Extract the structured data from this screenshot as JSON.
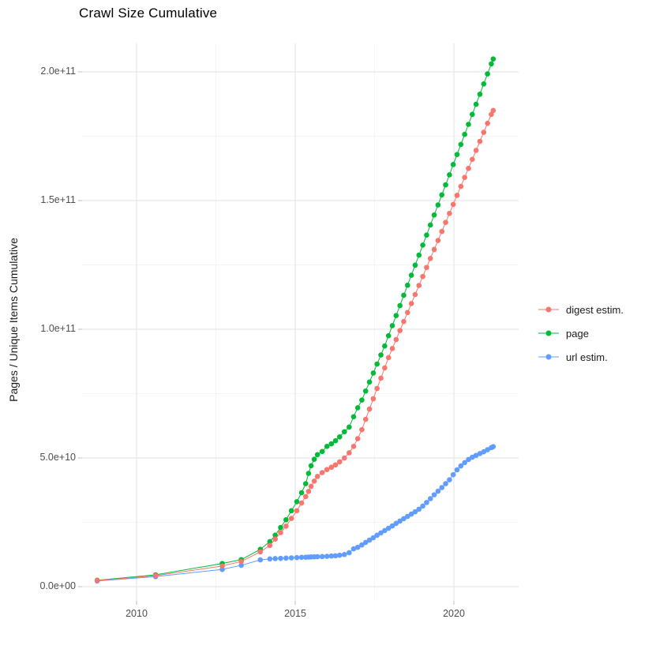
{
  "chart_data": {
    "type": "line",
    "title": "Crawl Size Cumulative",
    "xlabel": "",
    "ylabel": "Pages / Unique Items Cumulative",
    "legend_position": "right",
    "grid": true,
    "background_color": "#FFFFFF",
    "major_grid_color": "#E7E7E7",
    "minor_grid_color": "#F4F4F4",
    "tick_mark_color": "#C9C9C9",
    "x_range_shown": [
      2008.28,
      2022.04
    ],
    "y_range_shown": [
      0,
      211000000000
    ],
    "x_major_ticks": [
      {
        "value": 2010,
        "label": "2010"
      },
      {
        "value": 2015,
        "label": "2015"
      },
      {
        "value": 2020,
        "label": "2020"
      }
    ],
    "x_minor_ticks": [
      2012.5,
      2017.5
    ],
    "y_major_ticks": [
      {
        "value_billion": 0,
        "label": "0.0e+00"
      },
      {
        "value_billion": 50,
        "label": "5.0e+10"
      },
      {
        "value_billion": 100,
        "label": "1.0e+11"
      },
      {
        "value_billion": 150,
        "label": "1.5e+11"
      },
      {
        "value_billion": 200,
        "label": "2.0e+11"
      }
    ],
    "y_minor_ticks_billion": [
      25,
      75,
      125,
      175
    ],
    "values_unit": "billions of items (1e9)",
    "x_unit": "calendar year (decimal)",
    "x": [
      2008.76,
      2010.6,
      2012.7,
      2013.3,
      2013.9,
      2014.2,
      2014.37,
      2014.54,
      2014.71,
      2014.88,
      2015.05,
      2015.2,
      2015.33,
      2015.42,
      2015.5,
      2015.6,
      2015.7,
      2015.85,
      2016.0,
      2016.14,
      2016.27,
      2016.4,
      2016.55,
      2016.7,
      2016.84,
      2016.97,
      2017.1,
      2017.22,
      2017.34,
      2017.46,
      2017.58,
      2017.7,
      2017.82,
      2017.94,
      2018.06,
      2018.18,
      2018.3,
      2018.42,
      2018.54,
      2018.66,
      2018.78,
      2018.9,
      2019.02,
      2019.14,
      2019.26,
      2019.38,
      2019.5,
      2019.62,
      2019.74,
      2019.86,
      2019.98,
      2020.1,
      2020.22,
      2020.34,
      2020.46,
      2020.58,
      2020.7,
      2020.82,
      2020.94,
      2021.06,
      2021.18,
      2021.24
    ],
    "series": [
      {
        "name": "digest estim.",
        "color": "#F8766D",
        "values_billion": [
          2.4,
          4.3,
          8.0,
          9.8,
          13.5,
          16,
          18.5,
          21,
          23.5,
          26.5,
          29.5,
          32.5,
          35,
          37,
          39,
          41,
          42.8,
          44.3,
          45.5,
          46.4,
          47.3,
          48.5,
          50,
          52,
          54.5,
          57.5,
          61,
          65,
          69,
          73,
          77,
          81,
          85,
          89,
          92.5,
          96,
          99.5,
          103,
          106.5,
          110,
          113.5,
          117,
          120.5,
          124,
          127.5,
          131,
          134.5,
          138,
          141.5,
          145,
          148.5,
          152,
          155.5,
          159,
          162.5,
          166,
          169.5,
          173,
          176.5,
          180,
          183.5,
          185
        ]
      },
      {
        "name": "page",
        "color": "#00BA38",
        "values_billion": [
          2.5,
          4.6,
          9.0,
          10.5,
          14.5,
          17.5,
          20,
          23,
          26,
          29.5,
          33,
          36.5,
          40,
          44,
          47,
          49.5,
          51.3,
          52.5,
          54.5,
          55.5,
          56.7,
          58.2,
          60.2,
          62,
          66,
          69.5,
          72.5,
          76,
          79.5,
          83,
          86.5,
          90,
          93.5,
          97.5,
          101.4,
          105.3,
          109.2,
          113.2,
          117.1,
          121,
          124.9,
          128.8,
          132.7,
          136.6,
          140.5,
          144.4,
          148.3,
          152.2,
          156.1,
          160,
          164,
          167.9,
          171.8,
          175.7,
          179.6,
          183.5,
          187.4,
          191.3,
          195.3,
          199.2,
          203.1,
          205
        ]
      },
      {
        "name": "url estim.",
        "color": "#619CFF",
        "values_billion": [
          2.2,
          3.9,
          6.7,
          8.3,
          10.4,
          10.8,
          10.9,
          11.0,
          11.1,
          11.2,
          11.3,
          11.4,
          11.45,
          11.5,
          11.55,
          11.6,
          11.65,
          11.7,
          11.8,
          11.9,
          12.0,
          12.2,
          12.5,
          13.2,
          14.7,
          15.3,
          16.2,
          17.2,
          18.1,
          19,
          20,
          20.9,
          21.8,
          22.7,
          23.6,
          24.6,
          25.5,
          26.4,
          27.3,
          28.2,
          29.1,
          30.1,
          31.3,
          32.7,
          34.2,
          35.7,
          37.1,
          38.5,
          40,
          41.5,
          43.5,
          45.4,
          46.9,
          48.2,
          49.4,
          50.3,
          51.0,
          51.7,
          52.4,
          53.2,
          54.0,
          54.4
        ]
      }
    ],
    "draw_order": [
      1,
      2,
      0
    ],
    "point_radius": 3.3
  }
}
